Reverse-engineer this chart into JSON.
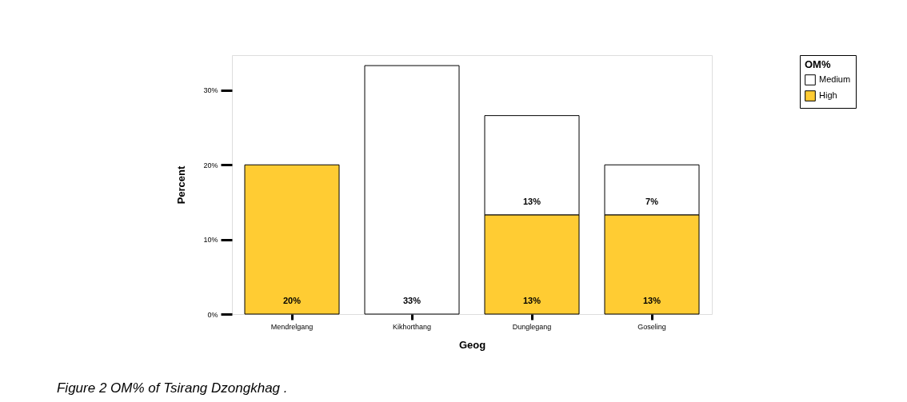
{
  "chart_data": {
    "type": "bar",
    "stacked": true,
    "xlabel": "Geog",
    "ylabel": "Percent",
    "legend_title": "OM%",
    "legend": "top right",
    "grid": false,
    "categories": [
      "Mendrelgang",
      "Kikhorthang",
      "Dunglegang",
      "Goseling"
    ],
    "series": [
      {
        "name": "High",
        "color": "#ffcc33",
        "values": [
          20,
          null,
          13.3,
          13.3
        ],
        "value_labels": [
          "20%",
          null,
          "13%",
          "13%"
        ]
      },
      {
        "name": "Medium",
        "color": "#ffffff",
        "values": [
          null,
          33.3,
          13.3,
          6.7
        ],
        "value_labels": [
          null,
          "33%",
          "13%",
          "7%"
        ]
      }
    ],
    "ylim": [
      0,
      34.7
    ],
    "yticks": [
      {
        "value": 0,
        "label": "0%"
      },
      {
        "value": 10,
        "label": "10%"
      },
      {
        "value": 20,
        "label": "20%"
      },
      {
        "value": 30,
        "label": "30%"
      }
    ],
    "annotations": [
      "Figure 2  OM% of Tsirang Dzongkhag ."
    ]
  }
}
